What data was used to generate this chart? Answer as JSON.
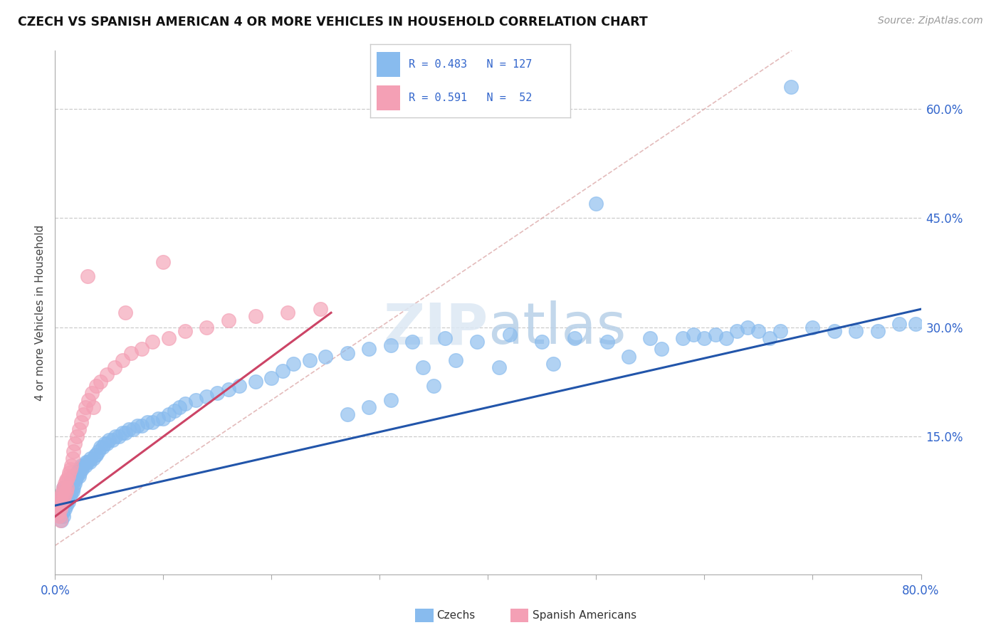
{
  "title": "CZECH VS SPANISH AMERICAN 4 OR MORE VEHICLES IN HOUSEHOLD CORRELATION CHART",
  "source": "Source: ZipAtlas.com",
  "ylabel": "4 or more Vehicles in Household",
  "right_yticklabels": [
    "",
    "15.0%",
    "30.0%",
    "45.0%",
    "60.0%"
  ],
  "right_ytick_vals": [
    0.0,
    0.15,
    0.3,
    0.45,
    0.6
  ],
  "czech_color": "#88BBEE",
  "spanish_color": "#F4A0B5",
  "czech_line_color": "#2255AA",
  "spanish_line_color": "#CC4466",
  "diagonal_color": "#DDAAAA",
  "title_color": "#111111",
  "source_color": "#999999",
  "legend_text_color": "#3366CC",
  "background_color": "#FFFFFF",
  "xmin": 0.0,
  "xmax": 0.8,
  "ymin": -0.04,
  "ymax": 0.68,
  "czech_trend_x0": 0.0,
  "czech_trend_x1": 0.8,
  "czech_trend_y0": 0.055,
  "czech_trend_y1": 0.325,
  "spanish_trend_x0": 0.0,
  "spanish_trend_x1": 0.255,
  "spanish_trend_y0": 0.04,
  "spanish_trend_y1": 0.32,
  "czech_x": [
    0.003,
    0.004,
    0.005,
    0.005,
    0.006,
    0.006,
    0.006,
    0.007,
    0.007,
    0.007,
    0.008,
    0.008,
    0.008,
    0.009,
    0.009,
    0.009,
    0.01,
    0.01,
    0.01,
    0.011,
    0.011,
    0.011,
    0.012,
    0.012,
    0.013,
    0.013,
    0.014,
    0.014,
    0.015,
    0.015,
    0.016,
    0.016,
    0.017,
    0.017,
    0.018,
    0.018,
    0.019,
    0.02,
    0.02,
    0.021,
    0.022,
    0.022,
    0.023,
    0.024,
    0.025,
    0.026,
    0.028,
    0.029,
    0.03,
    0.032,
    0.033,
    0.035,
    0.037,
    0.038,
    0.04,
    0.042,
    0.044,
    0.046,
    0.048,
    0.05,
    0.053,
    0.056,
    0.059,
    0.062,
    0.065,
    0.068,
    0.072,
    0.076,
    0.08,
    0.085,
    0.09,
    0.095,
    0.1,
    0.105,
    0.11,
    0.115,
    0.12,
    0.13,
    0.14,
    0.15,
    0.16,
    0.17,
    0.185,
    0.2,
    0.21,
    0.22,
    0.235,
    0.25,
    0.27,
    0.29,
    0.31,
    0.33,
    0.36,
    0.39,
    0.42,
    0.45,
    0.48,
    0.51,
    0.55,
    0.58,
    0.59,
    0.61,
    0.63,
    0.64,
    0.65,
    0.66,
    0.67,
    0.7,
    0.72,
    0.74,
    0.76,
    0.78,
    0.795,
    0.5,
    0.34,
    0.37,
    0.27,
    0.29,
    0.31,
    0.35,
    0.41,
    0.46,
    0.53,
    0.56,
    0.6,
    0.62,
    0.68
  ],
  "czech_y": [
    0.05,
    0.045,
    0.04,
    0.06,
    0.035,
    0.055,
    0.065,
    0.045,
    0.07,
    0.075,
    0.04,
    0.06,
    0.08,
    0.05,
    0.065,
    0.07,
    0.055,
    0.06,
    0.075,
    0.065,
    0.07,
    0.08,
    0.06,
    0.075,
    0.065,
    0.08,
    0.07,
    0.085,
    0.075,
    0.09,
    0.075,
    0.095,
    0.08,
    0.09,
    0.085,
    0.095,
    0.09,
    0.095,
    0.1,
    0.1,
    0.095,
    0.105,
    0.1,
    0.11,
    0.105,
    0.11,
    0.11,
    0.115,
    0.115,
    0.115,
    0.12,
    0.12,
    0.125,
    0.125,
    0.13,
    0.135,
    0.135,
    0.14,
    0.14,
    0.145,
    0.145,
    0.15,
    0.15,
    0.155,
    0.155,
    0.16,
    0.16,
    0.165,
    0.165,
    0.17,
    0.17,
    0.175,
    0.175,
    0.18,
    0.185,
    0.19,
    0.195,
    0.2,
    0.205,
    0.21,
    0.215,
    0.22,
    0.225,
    0.23,
    0.24,
    0.25,
    0.255,
    0.26,
    0.265,
    0.27,
    0.275,
    0.28,
    0.285,
    0.28,
    0.29,
    0.28,
    0.285,
    0.28,
    0.285,
    0.285,
    0.29,
    0.29,
    0.295,
    0.3,
    0.295,
    0.285,
    0.295,
    0.3,
    0.295,
    0.295,
    0.295,
    0.305,
    0.305,
    0.47,
    0.245,
    0.255,
    0.18,
    0.19,
    0.2,
    0.22,
    0.245,
    0.25,
    0.26,
    0.27,
    0.285,
    0.285,
    0.63
  ],
  "spanish_x": [
    0.003,
    0.003,
    0.004,
    0.004,
    0.005,
    0.005,
    0.005,
    0.006,
    0.006,
    0.007,
    0.007,
    0.008,
    0.008,
    0.009,
    0.009,
    0.01,
    0.01,
    0.011,
    0.011,
    0.012,
    0.013,
    0.014,
    0.015,
    0.016,
    0.017,
    0.018,
    0.02,
    0.022,
    0.024,
    0.026,
    0.028,
    0.031,
    0.034,
    0.038,
    0.042,
    0.048,
    0.055,
    0.062,
    0.07,
    0.08,
    0.09,
    0.105,
    0.12,
    0.14,
    0.16,
    0.185,
    0.215,
    0.245,
    0.03,
    0.035,
    0.065,
    0.1
  ],
  "spanish_y": [
    0.045,
    0.055,
    0.04,
    0.06,
    0.035,
    0.05,
    0.065,
    0.055,
    0.07,
    0.06,
    0.075,
    0.065,
    0.08,
    0.07,
    0.085,
    0.075,
    0.09,
    0.08,
    0.09,
    0.095,
    0.1,
    0.105,
    0.11,
    0.12,
    0.13,
    0.14,
    0.15,
    0.16,
    0.17,
    0.18,
    0.19,
    0.2,
    0.21,
    0.22,
    0.225,
    0.235,
    0.245,
    0.255,
    0.265,
    0.27,
    0.28,
    0.285,
    0.295,
    0.3,
    0.31,
    0.315,
    0.32,
    0.325,
    0.37,
    0.19,
    0.32,
    0.39
  ]
}
